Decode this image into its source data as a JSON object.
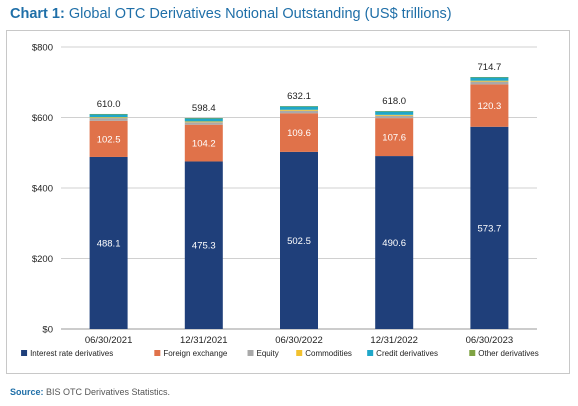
{
  "header": {
    "chart_label": "Chart 1:",
    "title": "Global OTC Derivatives Notional Outstanding (US$ trillions)"
  },
  "footer": {
    "source_label": "Source:",
    "source_text": "BIS OTC Derivatives Statistics."
  },
  "colors": {
    "interest": "#1f3f7a",
    "fx": "#e0724a",
    "equity": "#a9a9a9",
    "commodities": "#f2c12e",
    "credit": "#1fa7c9",
    "other": "#7fa343",
    "grid": "#d0d0d0",
    "title": "#1f6fa8"
  },
  "chart_data": {
    "type": "bar",
    "stacked": true,
    "categories": [
      "06/30/2021",
      "12/31/2021",
      "06/30/2022",
      "12/31/2022",
      "06/30/2023"
    ],
    "series": [
      {
        "name": "Interest rate derivatives",
        "color": "#1f3f7a",
        "values": [
          488.1,
          475.3,
          502.5,
          490.6,
          573.7
        ],
        "labels": [
          "488.1",
          "475.3",
          "502.5",
          "490.6",
          "573.7"
        ]
      },
      {
        "name": "Foreign exchange",
        "color": "#e0724a",
        "values": [
          102.5,
          104.2,
          109.6,
          107.6,
          120.3
        ],
        "labels": [
          "102.5",
          "104.2",
          "109.6",
          "107.6",
          "120.3"
        ]
      },
      {
        "name": "Equity",
        "color": "#a9a9a9",
        "values": [
          7.7,
          7.0,
          7.1,
          6.8,
          7.8
        ]
      },
      {
        "name": "Commodities",
        "color": "#f2c12e",
        "values": [
          2.5,
          2.4,
          2.7,
          2.6,
          2.6
        ]
      },
      {
        "name": "Credit derivatives",
        "color": "#1fa7c9",
        "values": [
          8.9,
          9.3,
          10.0,
          10.2,
          10.1
        ]
      },
      {
        "name": "Other derivatives",
        "color": "#7fa343",
        "values": [
          0.3,
          0.2,
          0.2,
          0.2,
          0.2
        ]
      }
    ],
    "totals": [
      "610.0",
      "598.4",
      "632.1",
      "618.0",
      "714.7"
    ],
    "total_values": [
      610.0,
      598.4,
      632.1,
      618.0,
      714.7
    ],
    "ylim": [
      0,
      800
    ],
    "yticks": [
      0,
      200,
      400,
      600,
      800
    ],
    "ytick_labels": [
      "$0",
      "$200",
      "$400",
      "$600",
      "$800"
    ],
    "grid": true,
    "legend_position": "bottom"
  }
}
